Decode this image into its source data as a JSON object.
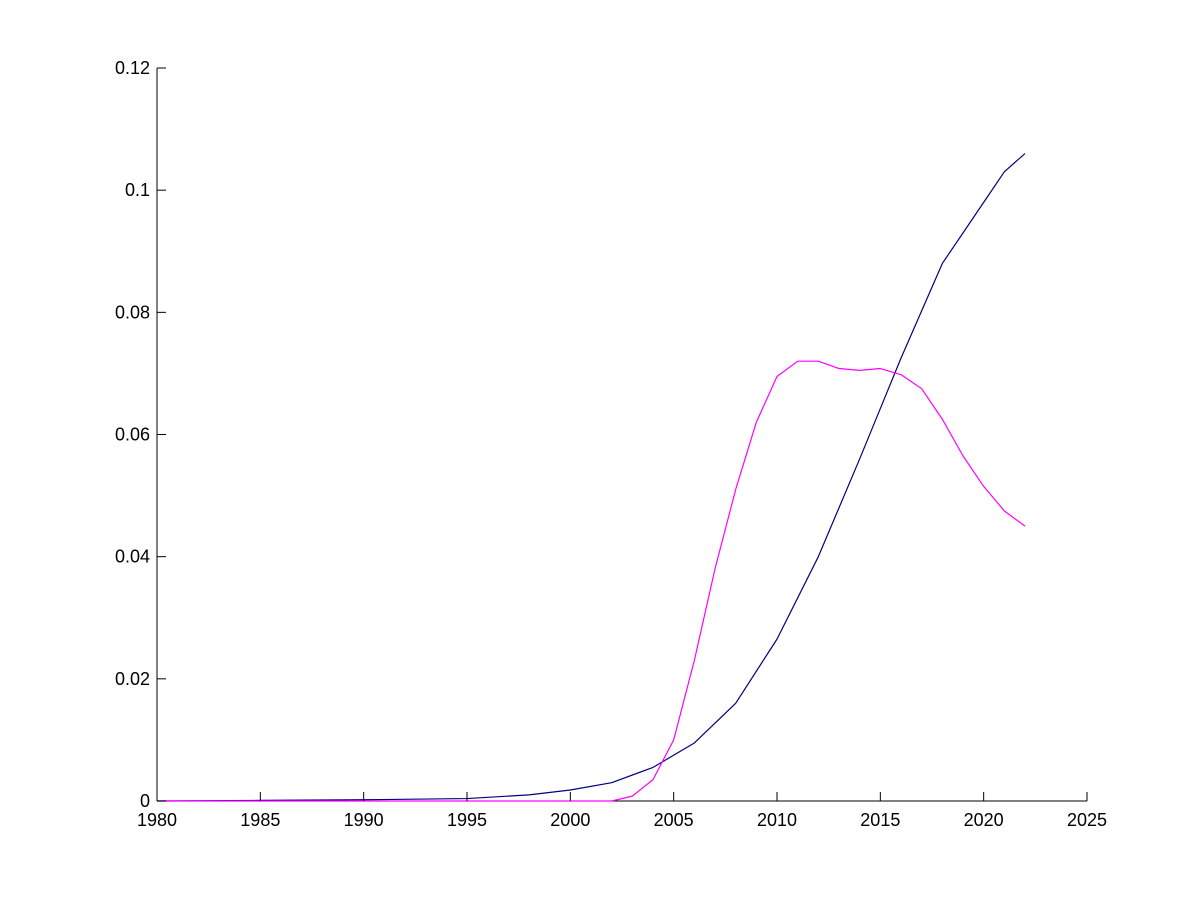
{
  "chart_data": {
    "type": "line",
    "title": "",
    "xlabel": "",
    "ylabel": "",
    "xlim": [
      1980,
      2025
    ],
    "ylim": [
      0,
      0.12
    ],
    "xticks": [
      "1980",
      "1985",
      "1990",
      "1995",
      "2000",
      "2005",
      "2010",
      "2015",
      "2020",
      "2025"
    ],
    "yticks": [
      "0",
      "0.02",
      "0.04",
      "0.06",
      "0.08",
      "0.1",
      "0.12"
    ],
    "grid": false,
    "legend": "none",
    "series": [
      {
        "color": "#000080",
        "points": [
          [
            1980,
            0.0
          ],
          [
            1985,
            0.0001
          ],
          [
            1990,
            0.0002
          ],
          [
            1995,
            0.0004
          ],
          [
            1998,
            0.001
          ],
          [
            2000,
            0.0018
          ],
          [
            2002,
            0.003
          ],
          [
            2004,
            0.0055
          ],
          [
            2006,
            0.0095
          ],
          [
            2008,
            0.016
          ],
          [
            2010,
            0.0265
          ],
          [
            2012,
            0.04
          ],
          [
            2014,
            0.056
          ],
          [
            2016,
            0.0725
          ],
          [
            2018,
            0.088
          ],
          [
            2020,
            0.098
          ],
          [
            2021,
            0.103
          ],
          [
            2022,
            0.106
          ]
        ]
      },
      {
        "color": "#ff00ff",
        "points": [
          [
            1980,
            0.0
          ],
          [
            2002,
            0.0
          ],
          [
            2003,
            0.0008
          ],
          [
            2004,
            0.0035
          ],
          [
            2005,
            0.01
          ],
          [
            2006,
            0.023
          ],
          [
            2007,
            0.038
          ],
          [
            2008,
            0.051
          ],
          [
            2009,
            0.062
          ],
          [
            2010,
            0.0695
          ],
          [
            2011,
            0.072
          ],
          [
            2012,
            0.072
          ],
          [
            2013,
            0.0708
          ],
          [
            2014,
            0.0705
          ],
          [
            2015,
            0.0708
          ],
          [
            2016,
            0.0698
          ],
          [
            2017,
            0.0675
          ],
          [
            2018,
            0.0625
          ],
          [
            2019,
            0.0565
          ],
          [
            2020,
            0.0515
          ],
          [
            2021,
            0.0475
          ],
          [
            2022,
            0.045
          ]
        ]
      }
    ]
  }
}
